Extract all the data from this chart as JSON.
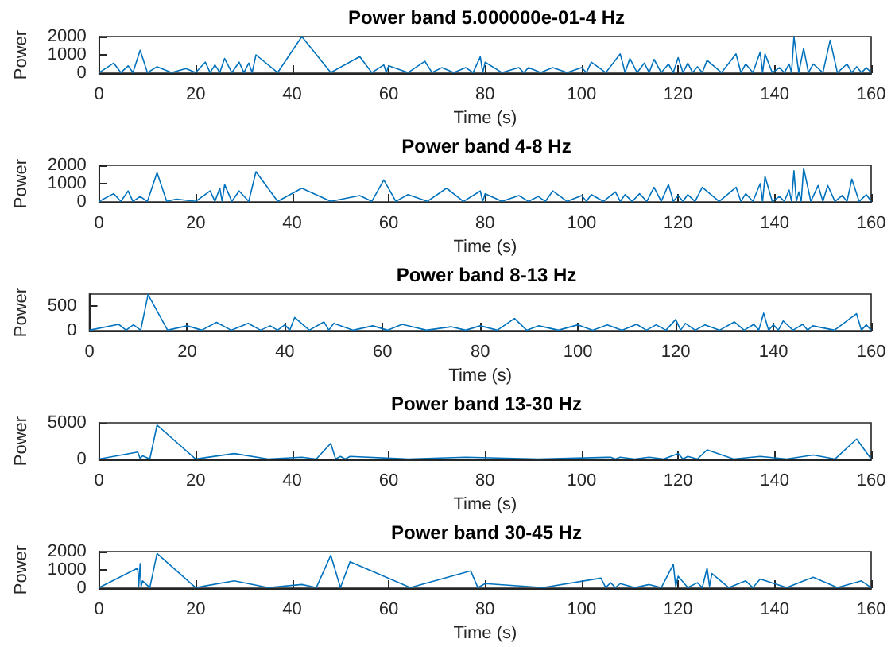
{
  "chart_data": [
    {
      "type": "line",
      "title": "Power band 5.000000e-01-4 Hz",
      "xlabel": "Time (s)",
      "ylabel": "Power",
      "xlim": [
        0,
        160
      ],
      "xticks": [
        0,
        20,
        40,
        60,
        80,
        100,
        120,
        140,
        160
      ],
      "ylim": [
        0,
        2000
      ],
      "yticks": [
        0,
        1000,
        2000
      ],
      "series": [
        {
          "color": "#0072bd",
          "x": [
            0,
            3,
            4.5,
            6,
            7,
            8.5,
            10,
            12,
            15,
            18,
            20,
            22,
            23,
            24,
            25,
            26,
            27.5,
            29,
            30,
            31,
            31.7,
            32.5,
            37,
            42,
            48,
            54,
            56.5,
            59,
            59.5,
            60,
            64,
            67.5,
            69,
            71,
            73.5,
            76,
            77.5,
            79,
            79.5,
            80,
            83.5,
            87,
            88,
            89,
            91.5,
            94,
            97,
            100,
            101,
            102,
            105,
            108,
            109,
            110,
            111.5,
            113,
            114,
            115,
            116.5,
            118,
            119,
            120,
            121,
            122,
            123,
            124,
            125,
            126,
            129,
            132,
            133,
            134,
            135.5,
            137,
            137.5,
            138,
            139.5,
            141,
            142,
            143,
            143.5,
            144,
            145,
            146,
            147,
            148,
            150,
            151.5,
            153,
            155,
            156,
            157,
            158,
            159,
            160
          ],
          "values": [
            30,
            550,
            30,
            400,
            30,
            1250,
            30,
            350,
            30,
            250,
            30,
            600,
            30,
            450,
            30,
            800,
            30,
            600,
            30,
            550,
            30,
            1000,
            30,
            2000,
            30,
            900,
            30,
            450,
            30,
            400,
            30,
            650,
            30,
            300,
            30,
            300,
            30,
            900,
            30,
            600,
            30,
            300,
            30,
            300,
            30,
            300,
            30,
            300,
            30,
            600,
            30,
            1050,
            30,
            800,
            30,
            550,
            30,
            750,
            30,
            500,
            30,
            850,
            30,
            550,
            30,
            350,
            30,
            700,
            30,
            1050,
            30,
            500,
            30,
            1150,
            30,
            1050,
            30,
            300,
            30,
            500,
            30,
            2000,
            30,
            1350,
            30,
            500,
            30,
            1800,
            30,
            500,
            30,
            350,
            30,
            300,
            30
          ]
        }
      ]
    },
    {
      "type": "line",
      "title": "Power band 4-8 Hz",
      "xlabel": "Time (s)",
      "ylabel": "Power",
      "xlim": [
        0,
        160
      ],
      "xticks": [
        0,
        20,
        40,
        60,
        80,
        100,
        120,
        140,
        160
      ],
      "ylim": [
        0,
        2000
      ],
      "yticks": [
        0,
        1000,
        2000
      ],
      "series": [
        {
          "color": "#0072bd",
          "x": [
            0,
            3,
            4.5,
            6,
            7,
            8.5,
            10,
            12,
            14,
            16,
            20,
            23,
            24,
            25,
            25.5,
            26,
            27.5,
            29,
            31,
            32.5,
            37,
            42,
            48,
            54,
            56.5,
            59,
            61.5,
            64,
            68,
            72,
            75.5,
            79,
            79.5,
            80,
            83.5,
            87,
            89,
            91,
            92.5,
            94,
            97,
            100,
            101,
            102,
            104.5,
            107,
            108,
            109,
            110.5,
            112,
            113.5,
            115,
            116.5,
            118,
            119,
            120,
            121,
            122,
            123.5,
            125,
            128.5,
            132,
            133,
            134,
            135.5,
            137,
            137.5,
            138,
            139.5,
            141,
            142,
            143,
            143.5,
            144,
            144.5,
            145,
            145.5,
            146,
            147.5,
            149,
            150,
            151,
            152.5,
            154,
            155,
            156,
            157.5,
            159,
            160
          ],
          "values": [
            30,
            450,
            30,
            600,
            30,
            300,
            30,
            1600,
            30,
            150,
            30,
            600,
            30,
            750,
            30,
            950,
            30,
            600,
            30,
            1650,
            30,
            750,
            30,
            350,
            30,
            1200,
            30,
            400,
            30,
            750,
            30,
            600,
            30,
            450,
            30,
            350,
            30,
            300,
            30,
            600,
            30,
            350,
            30,
            400,
            30,
            550,
            30,
            400,
            30,
            450,
            30,
            800,
            30,
            950,
            30,
            350,
            30,
            400,
            30,
            800,
            30,
            800,
            30,
            450,
            30,
            1000,
            30,
            1400,
            30,
            300,
            30,
            650,
            30,
            1700,
            30,
            550,
            30,
            1850,
            30,
            900,
            30,
            900,
            30,
            350,
            30,
            1250,
            30,
            400,
            30
          ]
        }
      ]
    },
    {
      "type": "line",
      "title": "Power band 8-13 Hz",
      "xlabel": "Time (s)",
      "ylabel": "Power",
      "xlim": [
        0,
        160
      ],
      "xticks": [
        0,
        20,
        40,
        60,
        80,
        100,
        120,
        140,
        160
      ],
      "ylim": [
        0,
        750
      ],
      "yticks": [
        0,
        500
      ],
      "series": [
        {
          "color": "#0072bd",
          "x": [
            0,
            6,
            7.5,
            9,
            10.5,
            12,
            16,
            20,
            23,
            26,
            29,
            32.5,
            35,
            37,
            38.5,
            40,
            41,
            42,
            45,
            48,
            49,
            50,
            54,
            58,
            61,
            64,
            69,
            74,
            77,
            80,
            83.5,
            87,
            89.5,
            92,
            96,
            100,
            103,
            106,
            109,
            112,
            114,
            116,
            118,
            120,
            121,
            122,
            124,
            126,
            129,
            132,
            134,
            136,
            137,
            138,
            139,
            140,
            141,
            142,
            144,
            146,
            147,
            148,
            152.5,
            157,
            158,
            159,
            160
          ],
          "values": [
            10,
            130,
            10,
            120,
            10,
            740,
            10,
            100,
            10,
            170,
            10,
            150,
            10,
            100,
            10,
            120,
            10,
            270,
            10,
            180,
            10,
            150,
            10,
            100,
            10,
            130,
            10,
            80,
            10,
            100,
            10,
            250,
            10,
            100,
            10,
            120,
            10,
            120,
            10,
            130,
            10,
            120,
            10,
            230,
            10,
            150,
            10,
            120,
            10,
            180,
            10,
            130,
            10,
            360,
            10,
            120,
            10,
            200,
            10,
            130,
            10,
            100,
            10,
            350,
            10,
            120,
            10
          ]
        }
      ]
    },
    {
      "type": "line",
      "title": "Power band 13-30 Hz",
      "xlabel": "Time (s)",
      "ylabel": "Power",
      "xlim": [
        0,
        160
      ],
      "xticks": [
        0,
        20,
        40,
        60,
        80,
        100,
        120,
        140,
        160
      ],
      "ylim": [
        0,
        5000
      ],
      "yticks": [
        0,
        5000
      ],
      "series": [
        {
          "color": "#0072bd",
          "x": [
            0,
            8,
            8.5,
            9,
            10.5,
            12,
            20,
            28,
            35,
            42,
            45,
            48,
            49,
            50,
            51,
            52,
            64,
            76,
            91,
            106,
            107,
            108,
            111,
            114,
            117,
            120,
            121,
            122,
            124,
            126,
            131.5,
            137,
            142.5,
            148,
            152.5,
            157,
            160
          ],
          "values": [
            50,
            1000,
            100,
            500,
            50,
            4700,
            50,
            800,
            50,
            300,
            50,
            2200,
            50,
            400,
            50,
            400,
            50,
            300,
            50,
            300,
            50,
            300,
            50,
            300,
            50,
            800,
            50,
            400,
            50,
            1300,
            50,
            400,
            50,
            600,
            50,
            2800,
            50
          ]
        }
      ]
    },
    {
      "type": "line",
      "title": "Power band 30-45 Hz",
      "xlabel": "Time (s)",
      "ylabel": "Power",
      "xlim": [
        0,
        160
      ],
      "xticks": [
        0,
        20,
        40,
        60,
        80,
        100,
        120,
        140,
        160
      ],
      "ylim": [
        0,
        2000
      ],
      "yticks": [
        0,
        1000,
        2000
      ],
      "series": [
        {
          "color": "#0072bd",
          "x": [
            0,
            8,
            8.2,
            8.5,
            8.7,
            9,
            10.5,
            12,
            20,
            28,
            35,
            42,
            45,
            48,
            50,
            52,
            64.5,
            77,
            78.5,
            80,
            92,
            104,
            105,
            106,
            107,
            108,
            111,
            114,
            116.5,
            119,
            119.5,
            120,
            122,
            124,
            125,
            126,
            126.5,
            127,
            130.5,
            134,
            135.5,
            137,
            142.5,
            148,
            153,
            158,
            160
          ],
          "values": [
            30,
            1100,
            100,
            1350,
            100,
            400,
            30,
            1900,
            30,
            400,
            30,
            200,
            30,
            1800,
            30,
            1450,
            30,
            950,
            30,
            250,
            30,
            550,
            30,
            300,
            30,
            250,
            30,
            200,
            30,
            1300,
            100,
            650,
            30,
            300,
            30,
            1100,
            100,
            800,
            30,
            400,
            30,
            500,
            30,
            600,
            30,
            400,
            30
          ]
        }
      ]
    }
  ]
}
